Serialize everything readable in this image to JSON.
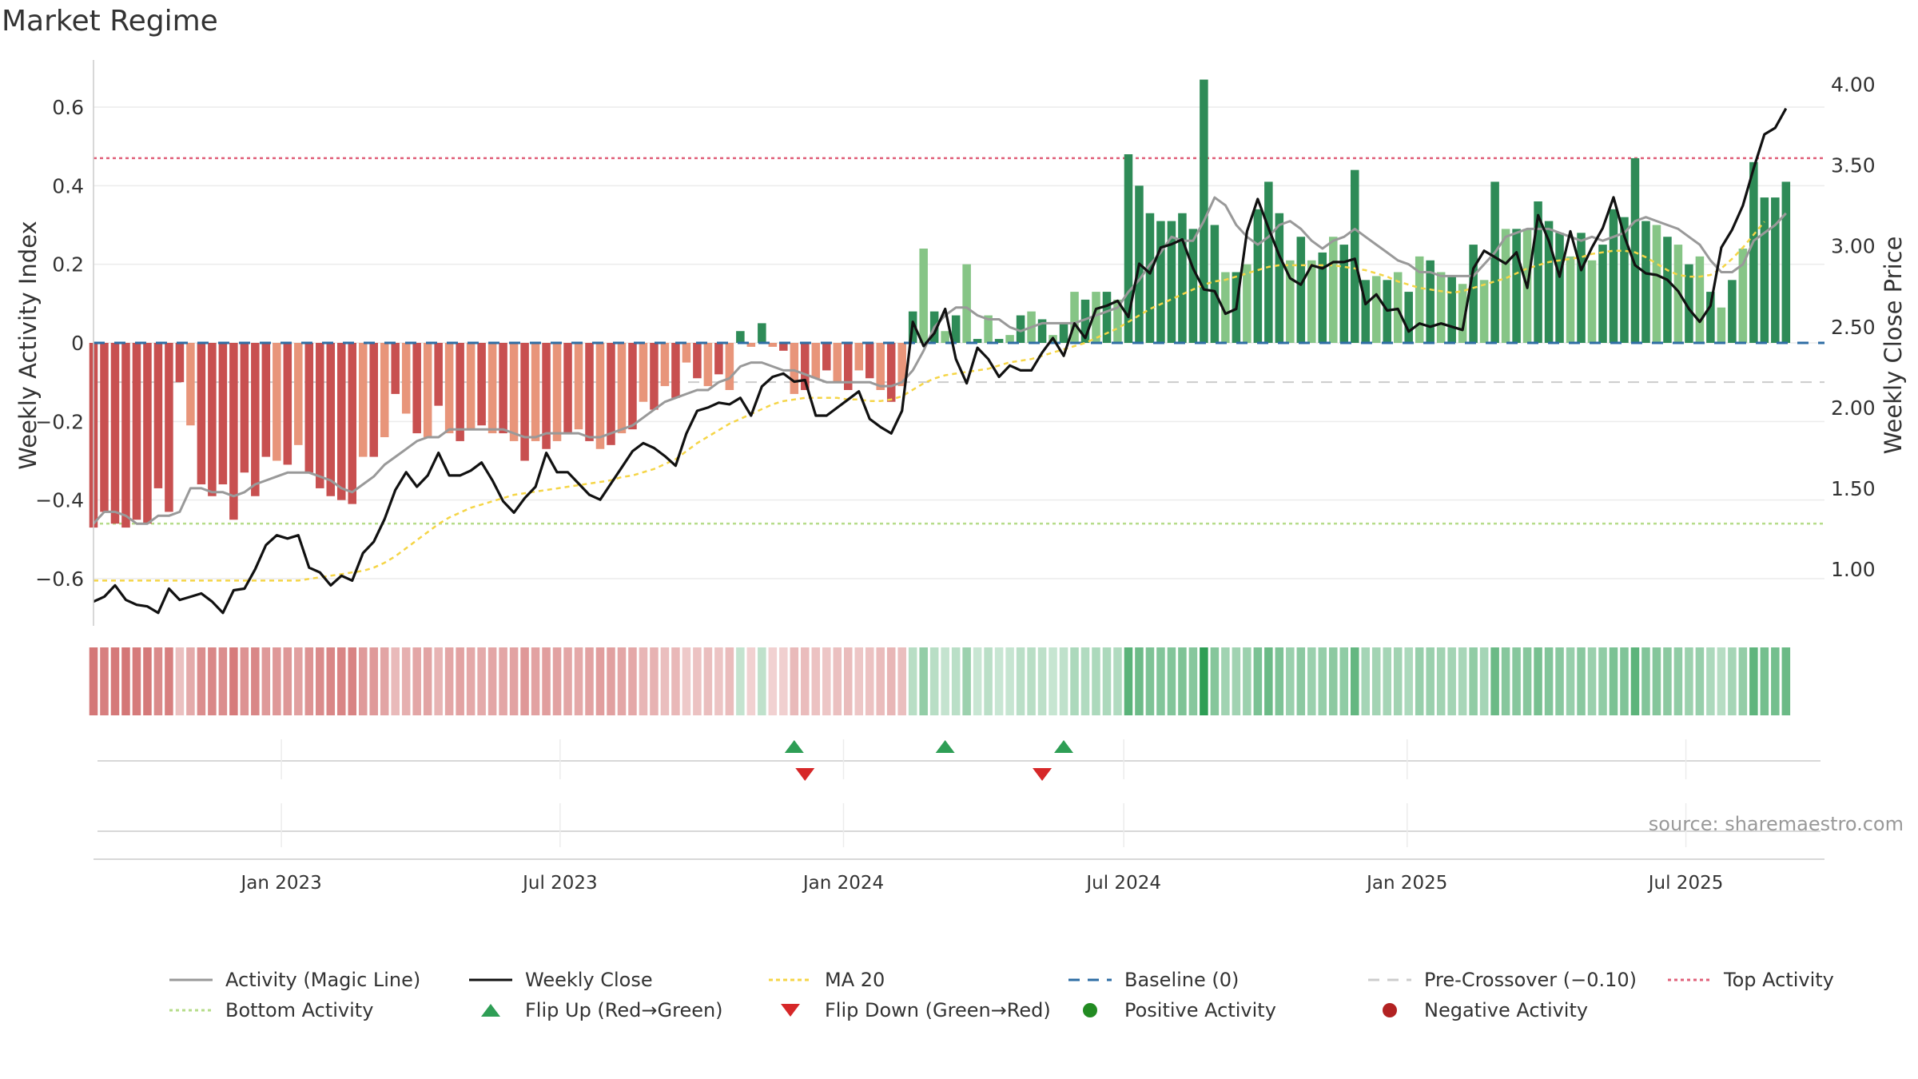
{
  "title": "Market Regime",
  "source_text": "source: sharemaestro.com",
  "colors": {
    "activity_line": "#999999",
    "weekly_close": "#111111",
    "ma20": "#f5d547",
    "baseline": "#2e6da4",
    "pre_crossover": "#cccccc",
    "top_activity": "#e0607a",
    "bottom_activity": "#b6dc8a",
    "flip_up": "#2e9e55",
    "flip_down": "#d62728",
    "bar_green_strong": "#2e8b57",
    "bar_green_light": "#86c586",
    "bar_red_strong": "#c85050",
    "bar_red_light": "#e8957a"
  },
  "legend": [
    {
      "label": "Activity (Magic Line)",
      "style": "solid-gray"
    },
    {
      "label": "Weekly Close",
      "style": "solid-black"
    },
    {
      "label": "MA 20",
      "style": "dotted-yellow"
    },
    {
      "label": "Baseline (0)",
      "style": "dashed-blue"
    },
    {
      "label": "Pre-Crossover (−0.10)",
      "style": "dashed-gray"
    },
    {
      "label": "Top Activity",
      "style": "dotted-pink"
    },
    {
      "label": "Bottom Activity",
      "style": "dotted-green"
    },
    {
      "label": "Flip Up (Red→Green)",
      "style": "triangle-up"
    },
    {
      "label": "Flip Down (Green→Red)",
      "style": "triangle-down"
    },
    {
      "label": "Positive Activity",
      "style": "dot-green"
    },
    {
      "label": "Negative Activity",
      "style": "dot-red"
    }
  ],
  "chart_data": {
    "type": "bar",
    "title": "Market Regime",
    "x_axis": {
      "start": "2022-09-01",
      "end": "2025-09-29",
      "ticks": [
        "2023-01-01",
        "2023-07-01",
        "2024-01-01",
        "2024-07-01",
        "2025-01-01",
        "2025-07-01"
      ],
      "tick_labels": [
        "Jan 2023",
        "Jul 2023",
        "Jan 2024",
        "Jul 2024",
        "Jan 2025",
        "Jul 2025"
      ]
    },
    "y_left": {
      "label": "Weekly Activity Index",
      "ylim": [
        -0.72,
        0.72
      ],
      "ticks": [
        -0.6,
        -0.4,
        -0.2,
        0,
        0.2,
        0.4,
        0.6
      ],
      "tick_labels": [
        "−0.6",
        "−0.4",
        "−0.2",
        "0",
        "0.2",
        "0.4",
        "0.6"
      ]
    },
    "y_right": {
      "label": "Weekly Close Price",
      "ylim": [
        0.65,
        4.15
      ],
      "ticks": [
        1.0,
        1.5,
        2.0,
        2.5,
        3.0,
        3.5,
        4.0
      ],
      "tick_labels": [
        "1.00",
        "1.50",
        "2.00",
        "2.50",
        "3.00",
        "3.50",
        "4.00"
      ]
    },
    "reference_lines": {
      "baseline": 0,
      "pre_crossover": -0.1,
      "top_activity": 0.47,
      "bottom_activity": -0.46
    },
    "series": [
      {
        "name": "Weekly Activity Index",
        "start": "2022-09-01",
        "interval_days": 7,
        "values": [
          -0.47,
          -0.43,
          -0.46,
          -0.47,
          -0.45,
          -0.46,
          -0.37,
          -0.43,
          -0.1,
          -0.21,
          -0.36,
          -0.39,
          -0.36,
          -0.45,
          -0.33,
          -0.39,
          -0.29,
          -0.3,
          -0.31,
          -0.26,
          -0.33,
          -0.37,
          -0.39,
          -0.4,
          -0.41,
          -0.29,
          -0.29,
          -0.24,
          -0.13,
          -0.18,
          -0.23,
          -0.24,
          -0.16,
          -0.23,
          -0.25,
          -0.22,
          -0.21,
          -0.23,
          -0.23,
          -0.25,
          -0.3,
          -0.25,
          -0.27,
          -0.25,
          -0.23,
          -0.22,
          -0.25,
          -0.27,
          -0.26,
          -0.23,
          -0.22,
          -0.15,
          -0.17,
          -0.11,
          -0.14,
          -0.05,
          -0.09,
          -0.11,
          -0.08,
          -0.12,
          0.03,
          -0.01,
          0.05,
          -0.01,
          -0.02,
          -0.13,
          -0.12,
          -0.09,
          -0.07,
          -0.1,
          -0.12,
          -0.07,
          -0.09,
          -0.12,
          -0.15,
          -0.11,
          0.08,
          0.24,
          0.08,
          0.03,
          0.07,
          0.2,
          0.01,
          0.07,
          0.01,
          0.02,
          0.07,
          0.08,
          0.06,
          0.02,
          0.05,
          0.13,
          0.11,
          0.13,
          0.13,
          0.11,
          0.48,
          0.4,
          0.33,
          0.31,
          0.31,
          0.33,
          0.29,
          0.67,
          0.3,
          0.18,
          0.18,
          0.2,
          0.34,
          0.41,
          0.33,
          0.21,
          0.27,
          0.21,
          0.23,
          0.27,
          0.25,
          0.44,
          0.16,
          0.17,
          0.16,
          0.18,
          0.13,
          0.22,
          0.21,
          0.18,
          0.17,
          0.15,
          0.25,
          0.16,
          0.41,
          0.29,
          0.29,
          0.29,
          0.36,
          0.31,
          0.28,
          0.22,
          0.28,
          0.21,
          0.25,
          0.34,
          0.32,
          0.47,
          0.31,
          0.3,
          0.27,
          0.25,
          0.2,
          0.22,
          0.13,
          0.09,
          0.16,
          0.24,
          0.46,
          0.37,
          0.37,
          0.41
        ]
      },
      {
        "name": "Activity (Magic Line)",
        "start": "2022-09-01",
        "interval_days": 7,
        "values": [
          -0.46,
          -0.43,
          -0.43,
          -0.44,
          -0.46,
          -0.46,
          -0.44,
          -0.44,
          -0.43,
          -0.37,
          -0.37,
          -0.38,
          -0.38,
          -0.39,
          -0.38,
          -0.36,
          -0.35,
          -0.34,
          -0.33,
          -0.33,
          -0.33,
          -0.34,
          -0.35,
          -0.37,
          -0.38,
          -0.36,
          -0.34,
          -0.31,
          -0.29,
          -0.27,
          -0.25,
          -0.24,
          -0.24,
          -0.22,
          -0.22,
          -0.22,
          -0.22,
          -0.22,
          -0.22,
          -0.23,
          -0.24,
          -0.24,
          -0.23,
          -0.23,
          -0.23,
          -0.23,
          -0.24,
          -0.24,
          -0.23,
          -0.22,
          -0.21,
          -0.19,
          -0.17,
          -0.15,
          -0.14,
          -0.13,
          -0.12,
          -0.12,
          -0.1,
          -0.09,
          -0.06,
          -0.05,
          -0.05,
          -0.06,
          -0.07,
          -0.07,
          -0.08,
          -0.09,
          -0.1,
          -0.1,
          -0.1,
          -0.1,
          -0.1,
          -0.11,
          -0.11,
          -0.1,
          -0.07,
          -0.02,
          0.04,
          0.07,
          0.09,
          0.09,
          0.07,
          0.06,
          0.06,
          0.04,
          0.03,
          0.04,
          0.05,
          0.05,
          0.05,
          0.05,
          0.06,
          0.07,
          0.08,
          0.09,
          0.13,
          0.16,
          0.2,
          0.23,
          0.27,
          0.26,
          0.26,
          0.31,
          0.37,
          0.35,
          0.3,
          0.27,
          0.25,
          0.27,
          0.3,
          0.31,
          0.29,
          0.26,
          0.24,
          0.26,
          0.27,
          0.29,
          0.27,
          0.25,
          0.23,
          0.21,
          0.2,
          0.18,
          0.18,
          0.17,
          0.17,
          0.17,
          0.17,
          0.2,
          0.23,
          0.27,
          0.28,
          0.29,
          0.29,
          0.29,
          0.28,
          0.27,
          0.26,
          0.27,
          0.26,
          0.27,
          0.28,
          0.31,
          0.32,
          0.31,
          0.3,
          0.29,
          0.27,
          0.25,
          0.21,
          0.18,
          0.18,
          0.2,
          0.26,
          0.28,
          0.3,
          0.33
        ]
      },
      {
        "name": "Weekly Close",
        "start": "2022-09-01",
        "interval_days": 7,
        "values": [
          0.8,
          0.83,
          0.9,
          0.81,
          0.78,
          0.77,
          0.73,
          0.88,
          0.81,
          0.83,
          0.85,
          0.8,
          0.73,
          0.87,
          0.88,
          1.0,
          1.15,
          1.21,
          1.19,
          1.21,
          1.01,
          0.98,
          0.9,
          0.96,
          0.93,
          1.1,
          1.17,
          1.31,
          1.49,
          1.6,
          1.51,
          1.58,
          1.72,
          1.58,
          1.58,
          1.61,
          1.66,
          1.55,
          1.42,
          1.35,
          1.44,
          1.51,
          1.72,
          1.6,
          1.6,
          1.53,
          1.46,
          1.43,
          1.53,
          1.63,
          1.73,
          1.78,
          1.75,
          1.7,
          1.64,
          1.84,
          1.98,
          2.0,
          2.03,
          2.02,
          2.06,
          1.95,
          2.13,
          2.19,
          2.21,
          2.16,
          2.17,
          1.95,
          1.95,
          2.0,
          2.05,
          2.1,
          1.93,
          1.88,
          1.84,
          1.98,
          2.53,
          2.38,
          2.46,
          2.61,
          2.3,
          2.15,
          2.37,
          2.3,
          2.19,
          2.26,
          2.23,
          2.23,
          2.34,
          2.43,
          2.32,
          2.52,
          2.43,
          2.61,
          2.63,
          2.66,
          2.56,
          2.89,
          2.83,
          2.99,
          3.01,
          3.04,
          2.86,
          2.73,
          2.72,
          2.58,
          2.61,
          3.09,
          3.29,
          3.11,
          2.94,
          2.8,
          2.76,
          2.88,
          2.86,
          2.9,
          2.9,
          2.92,
          2.64,
          2.7,
          2.6,
          2.61,
          2.47,
          2.52,
          2.5,
          2.52,
          2.5,
          2.48,
          2.86,
          2.97,
          2.93,
          2.89,
          2.96,
          2.74,
          3.19,
          3.03,
          2.81,
          3.09,
          2.85,
          2.99,
          3.11,
          3.3,
          3.06,
          2.88,
          2.83,
          2.82,
          2.79,
          2.72,
          2.61,
          2.53,
          2.63,
          2.99,
          3.1,
          3.25,
          3.48,
          3.69,
          3.73,
          3.85
        ]
      },
      {
        "name": "MA 20",
        "start": "2022-09-01",
        "interval_days": 7,
        "values": [
          0.93,
          0.93,
          0.93,
          0.93,
          0.93,
          0.93,
          0.93,
          0.93,
          0.93,
          0.93,
          0.93,
          0.93,
          0.93,
          0.93,
          0.93,
          0.93,
          0.93,
          0.93,
          0.93,
          0.93,
          0.94,
          0.95,
          0.96,
          0.97,
          0.98,
          0.99,
          1.01,
          1.04,
          1.08,
          1.13,
          1.18,
          1.23,
          1.28,
          1.32,
          1.35,
          1.38,
          1.4,
          1.42,
          1.44,
          1.46,
          1.47,
          1.48,
          1.49,
          1.5,
          1.51,
          1.52,
          1.53,
          1.54,
          1.55,
          1.57,
          1.58,
          1.6,
          1.62,
          1.65,
          1.68,
          1.73,
          1.78,
          1.82,
          1.86,
          1.9,
          1.93,
          1.96,
          1.99,
          2.02,
          2.04,
          2.05,
          2.06,
          2.06,
          2.06,
          2.06,
          2.05,
          2.05,
          2.04,
          2.04,
          2.05,
          2.07,
          2.11,
          2.15,
          2.18,
          2.2,
          2.21,
          2.22,
          2.23,
          2.24,
          2.26,
          2.28,
          2.29,
          2.3,
          2.32,
          2.34,
          2.36,
          2.38,
          2.4,
          2.43,
          2.46,
          2.49,
          2.53,
          2.57,
          2.61,
          2.64,
          2.67,
          2.7,
          2.73,
          2.76,
          2.78,
          2.79,
          2.81,
          2.83,
          2.85,
          2.87,
          2.88,
          2.88,
          2.88,
          2.88,
          2.88,
          2.88,
          2.87,
          2.86,
          2.85,
          2.83,
          2.81,
          2.78,
          2.76,
          2.74,
          2.73,
          2.72,
          2.71,
          2.72,
          2.74,
          2.76,
          2.78,
          2.8,
          2.83,
          2.86,
          2.88,
          2.9,
          2.91,
          2.92,
          2.93,
          2.95,
          2.96,
          2.97,
          2.97,
          2.96,
          2.93,
          2.89,
          2.85,
          2.82,
          2.81,
          2.81,
          2.82,
          2.86,
          2.92,
          2.99,
          3.07,
          3.15
        ]
      }
    ],
    "flips": {
      "up": [
        "2023-11-30",
        "2024-03-07",
        "2024-05-23"
      ],
      "down": [
        "2023-12-07",
        "2024-05-09"
      ]
    },
    "regime_strip_note": "Color strip below main panel: red shades while activity < 0, green shades while activity > 0; intensity follows activity magnitude.",
    "grid": true,
    "legend_position": "bottom"
  }
}
